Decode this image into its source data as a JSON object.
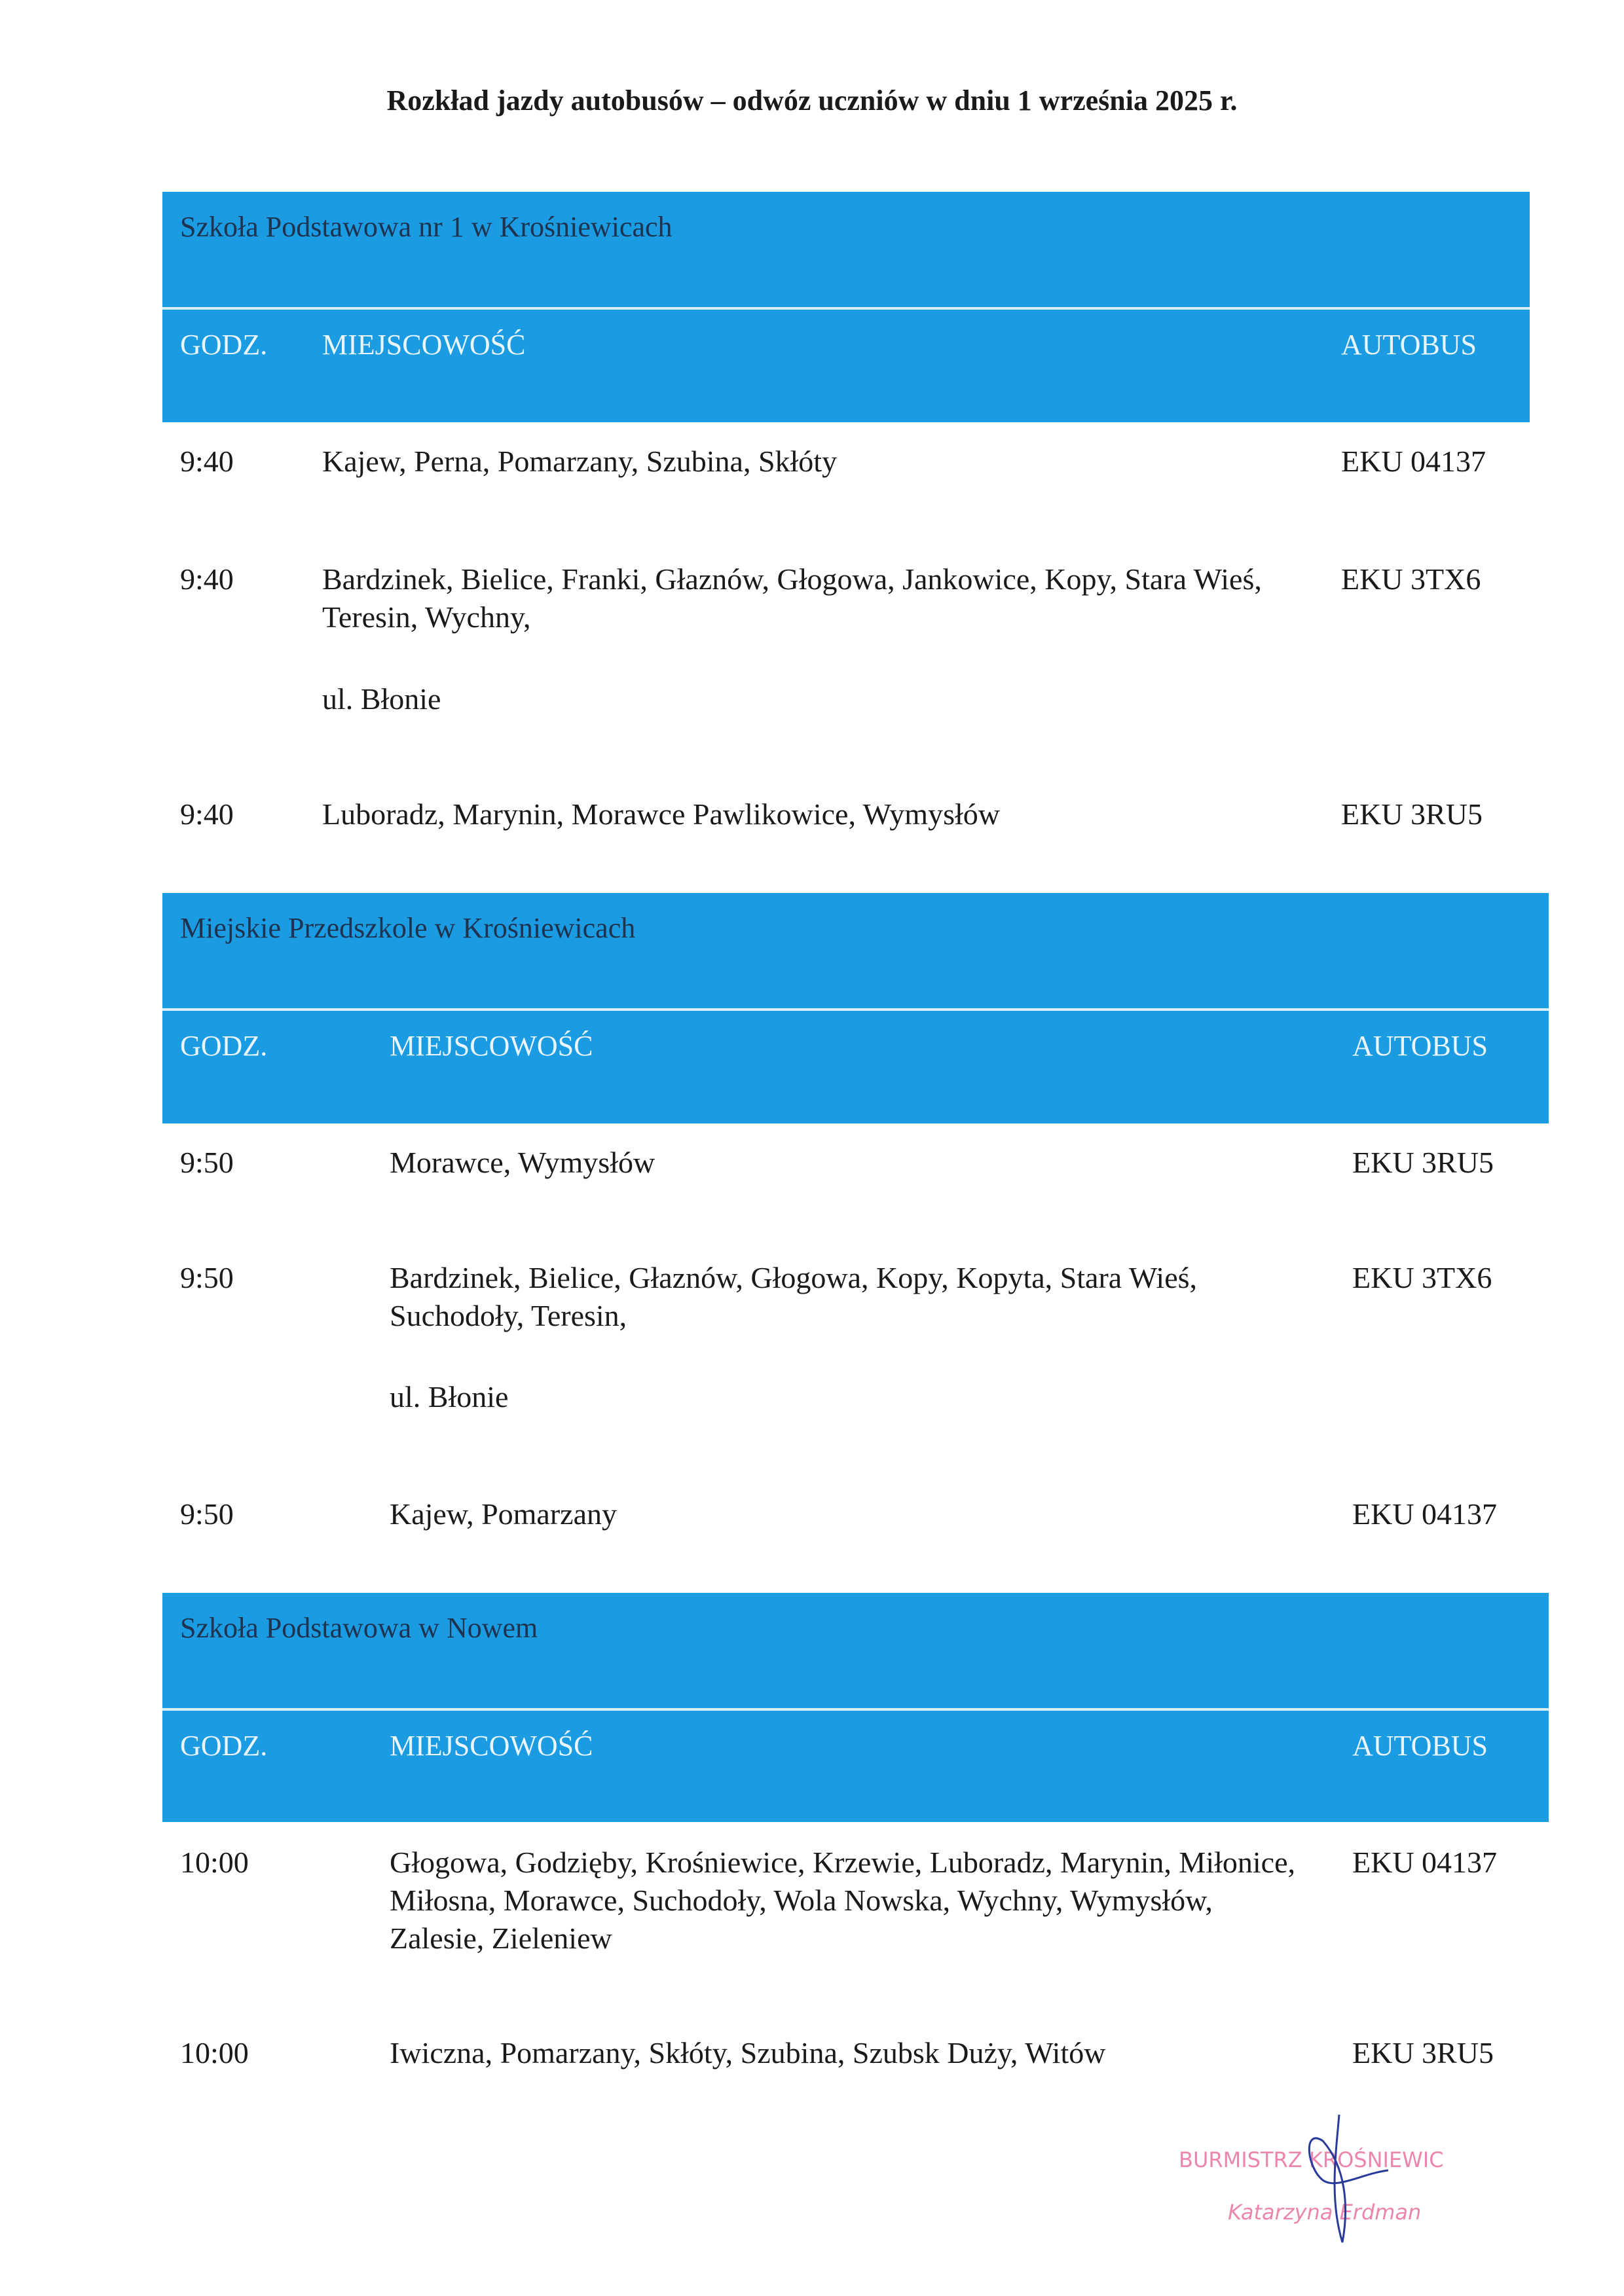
{
  "title": "Rozkład jazdy autobusów – odwóz uczniów w dniu  1 września 2025 r.",
  "sections": [
    {
      "name": "Szkoła Podstawowa nr 1 w Krośniewicach",
      "headers": {
        "time": "GODZ.",
        "place": "MIEJSCOWOŚĆ",
        "bus": "AUTOBUS"
      },
      "rows": [
        {
          "time": "9:40",
          "places": "Kajew, Perna, Pomarzany, Szubina, Skłóty",
          "extra": "",
          "bus": "EKU 04137"
        },
        {
          "time": "9:40",
          "places": "Bardzinek, Bielice, Franki, Głaznów, Głogowa, Jankowice, Kopy, Stara Wieś, Teresin, Wychny,",
          "extra": "ul. Błonie",
          "bus": "EKU 3TX6"
        },
        {
          "time": "9:40",
          "places": "Luboradz, Marynin, Morawce Pawlikowice, Wymysłów",
          "extra": "",
          "bus": "EKU 3RU5"
        }
      ]
    },
    {
      "name": "Miejskie Przedszkole w Krośniewicach",
      "headers": {
        "time": "GODZ.",
        "place": "MIEJSCOWOŚĆ",
        "bus": "AUTOBUS"
      },
      "rows": [
        {
          "time": "9:50",
          "places": "Morawce, Wymysłów",
          "extra": "",
          "bus": "EKU 3RU5"
        },
        {
          "time": "9:50",
          "places": "Bardzinek, Bielice, Głaznów, Głogowa, Kopy, Kopyta, Stara Wieś, Suchodoły, Teresin,",
          "extra": "ul. Błonie",
          "bus": "EKU 3TX6"
        },
        {
          "time": "9:50",
          "places": "Kajew, Pomarzany",
          "extra": "",
          "bus": "EKU 04137"
        }
      ]
    },
    {
      "name": "Szkoła Podstawowa w Nowem",
      "headers": {
        "time": "GODZ.",
        "place": "MIEJSCOWOŚĆ",
        "bus": "AUTOBUS"
      },
      "rows": [
        {
          "time": "10:00",
          "places": "Głogowa, Godzięby, Krośniewice, Krzewie, Luboradz, Marynin, Miłonice, Miłosna, Morawce, Suchodoły, Wola Nowska, Wychny, Wymysłów, Zalesie, Zieleniew",
          "extra": "",
          "bus": "EKU 04137"
        },
        {
          "time": "10:00",
          "places": "Iwiczna, Pomarzany, Skłóty, Szubina, Szubsk Duży, Witów",
          "extra": "",
          "bus": "EKU 3RU5"
        }
      ]
    }
  ],
  "stamp": {
    "office": "BURMISTRZ KROŚNIEWIC",
    "person": "Katarzyna Erdman"
  },
  "colors": {
    "band": "#1b9be1",
    "stamp": "#e8679a",
    "signature": "#2a3a9a"
  }
}
